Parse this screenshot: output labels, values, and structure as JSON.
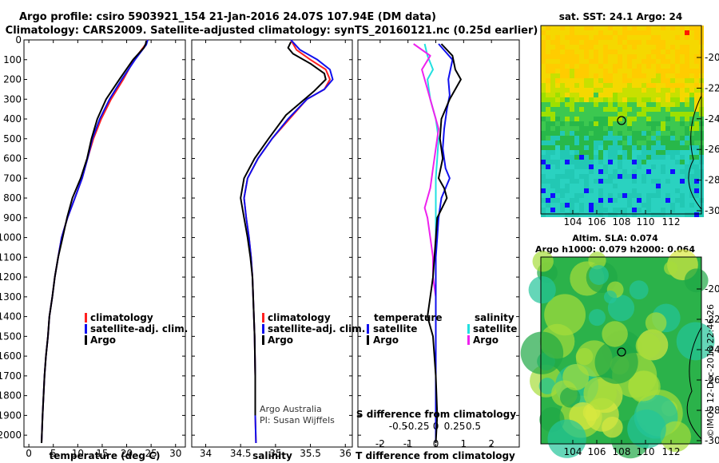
{
  "header": {
    "title_line1": "Argo profile: csiro 5903921_154 21-Jan-2016 24.07S 107.94E (DM data)",
    "title_line2": "Climatology: CARS2009. Satellite-adjusted climatology: synTS_20160121.nc (0.25d earlier)"
  },
  "colors": {
    "climatology": "#ff2020",
    "satellite": "#1010ee",
    "argo": "#000000",
    "sat_salinity": "#22e0e0",
    "argo_salinity": "#ee22ee"
  },
  "footer": {
    "credit1": "Argo Australia",
    "credit2": "PI: Susan Wijffels",
    "stamp": "©IMOS 12-Dec-2018 22:46:26"
  },
  "sst_map": {
    "title": "sat. SST: 24.1  Argo: 24",
    "lat_ticks": [
      "-20",
      "-22",
      "-24",
      "-26",
      "-28",
      "-30"
    ],
    "lon_ticks": [
      "104",
      "106",
      "108",
      "110",
      "112"
    ]
  },
  "sla_map": {
    "title1": "Altim. SLA: 0.074",
    "title2": "Argo h1000: 0.079  h2000: 0.064",
    "lat_ticks": [
      "-20",
      "-22",
      "-24",
      "-26",
      "-28",
      "-30"
    ],
    "lon_ticks": [
      "104",
      "106",
      "108",
      "110",
      "112"
    ]
  },
  "chart_data": [
    {
      "type": "line",
      "panel": "temperature",
      "xlabel": "temperature (deg C)",
      "ylabel": "",
      "xlim": [
        -1,
        32
      ],
      "ylim": [
        2060,
        0
      ],
      "y_inverted": true,
      "x_ticks": [
        "0",
        "5",
        "10",
        "15",
        "20",
        "25",
        "30"
      ],
      "y_ticks": [
        "0",
        "100",
        "200",
        "300",
        "400",
        "500",
        "600",
        "700",
        "800",
        "900",
        "1000",
        "1100",
        "1200",
        "1300",
        "1400",
        "1500",
        "1600",
        "1700",
        "1800",
        "1900",
        "2000"
      ],
      "legend": [
        "climatology",
        "satellite-adj. clim.",
        "Argo"
      ],
      "series": [
        {
          "name": "climatology",
          "color": "#ff2020",
          "x": [
            24.3,
            23.8,
            21.5,
            19.3,
            16.8,
            14.8,
            13.2,
            12.0,
            10.9,
            9.4,
            7.9,
            6.7,
            6.0,
            5.3,
            4.8,
            4.2,
            3.9,
            3.5,
            3.2,
            3.0,
            2.8,
            2.6
          ],
          "y": [
            0,
            25,
            100,
            200,
            300,
            400,
            500,
            600,
            700,
            800,
            900,
            1000,
            1100,
            1200,
            1300,
            1400,
            1500,
            1600,
            1700,
            1800,
            1900,
            2040
          ]
        },
        {
          "name": "satellite-adj. clim.",
          "color": "#1010ee",
          "x": [
            24.3,
            24.0,
            21.7,
            19.0,
            16.5,
            14.5,
            13.0,
            12.0,
            10.9,
            9.4,
            7.9,
            6.7,
            6.0,
            5.3,
            4.8,
            4.2,
            3.9,
            3.5,
            3.2,
            3.0,
            2.8,
            2.6
          ],
          "y": [
            0,
            25,
            100,
            200,
            300,
            400,
            500,
            600,
            700,
            800,
            900,
            1000,
            1100,
            1200,
            1300,
            1400,
            1500,
            1600,
            1700,
            1800,
            1900,
            2040
          ]
        },
        {
          "name": "Argo",
          "color": "#000000",
          "x": [
            24.0,
            23.9,
            23.5,
            21.3,
            18.5,
            15.8,
            14.0,
            12.8,
            11.9,
            10.6,
            8.9,
            7.8,
            6.9,
            6.0,
            5.3,
            4.8,
            4.2,
            3.9,
            3.5,
            3.2,
            3.0,
            2.8,
            2.6
          ],
          "y": [
            5,
            20,
            40,
            100,
            200,
            300,
            400,
            500,
            600,
            700,
            800,
            900,
            1000,
            1100,
            1200,
            1300,
            1400,
            1500,
            1600,
            1700,
            1800,
            1900,
            2040
          ]
        }
      ]
    },
    {
      "type": "line",
      "panel": "salinity",
      "xlabel": "salinity",
      "ylabel": "",
      "xlim": [
        33.8,
        36.1
      ],
      "ylim": [
        2060,
        0
      ],
      "y_inverted": true,
      "x_ticks": [
        "34",
        "34.5",
        "35",
        "35.5",
        "36"
      ],
      "legend": [
        "climatology",
        "satellite-adj. clim.",
        "Argo"
      ],
      "series": [
        {
          "name": "climatology",
          "color": "#ff2020",
          "x": [
            35.22,
            35.3,
            35.5,
            35.72,
            35.78,
            35.7,
            35.45,
            35.2,
            34.95,
            34.75,
            34.6,
            34.55,
            34.58,
            34.62,
            34.65,
            34.67,
            34.68,
            34.69,
            34.7,
            34.71,
            34.71,
            34.72
          ],
          "y": [
            0,
            50,
            100,
            150,
            200,
            250,
            300,
            400,
            500,
            600,
            700,
            800,
            900,
            1000,
            1100,
            1200,
            1300,
            1400,
            1500,
            1700,
            1900,
            2040
          ]
        },
        {
          "name": "satellite-adj. clim.",
          "color": "#1010ee",
          "x": [
            35.22,
            35.35,
            35.6,
            35.78,
            35.82,
            35.7,
            35.45,
            35.18,
            34.95,
            34.75,
            34.6,
            34.55,
            34.58,
            34.62,
            34.65,
            34.67,
            34.68,
            34.69,
            34.7,
            34.71,
            34.71,
            34.72
          ],
          "y": [
            0,
            50,
            100,
            150,
            200,
            250,
            300,
            400,
            500,
            600,
            700,
            800,
            900,
            1000,
            1100,
            1200,
            1300,
            1400,
            1500,
            1700,
            1900,
            2040
          ]
        },
        {
          "name": "Argo",
          "color": "#000000",
          "x": [
            35.22,
            35.18,
            35.25,
            35.5,
            35.7,
            35.72,
            35.55,
            35.15,
            34.9,
            34.7,
            34.55,
            34.5,
            34.55,
            34.6,
            34.64,
            34.67,
            34.68,
            34.69,
            34.7,
            34.71,
            34.71
          ],
          "y": [
            10,
            40,
            70,
            120,
            170,
            200,
            260,
            380,
            500,
            600,
            700,
            800,
            900,
            1000,
            1100,
            1200,
            1300,
            1400,
            1500,
            1700,
            1900
          ]
        }
      ]
    },
    {
      "type": "line",
      "panel": "difference",
      "xlabel": "T difference from climatology",
      "title": "S difference from climatology",
      "xlim": [
        -2.8,
        3.0
      ],
      "ylim": [
        2060,
        0
      ],
      "y_inverted": true,
      "x_ticks": [
        "-2",
        "-1",
        "0",
        "1",
        "2"
      ],
      "x2_ticks": [
        "-0.5",
        "-0.25",
        "0",
        "0.25",
        "0.5"
      ],
      "legend": {
        "temperature_title": "temperature",
        "salinity_title": "salinity",
        "temperature": [
          "satellite",
          "Argo"
        ],
        "salinity": [
          "satellite",
          "Argo"
        ]
      },
      "series": [
        {
          "name": "satellite",
          "color": "#1010ee",
          "x": [
            0.1,
            0.35,
            0.6,
            0.45,
            0.5,
            0.4,
            0.3,
            0.25,
            0.35,
            0.5,
            0.2,
            0.1,
            0.05,
            0.0,
            0.0,
            0.0,
            0.0,
            0.0,
            0.0,
            0.0,
            0.0
          ],
          "y": [
            20,
            60,
            100,
            200,
            280,
            350,
            450,
            550,
            650,
            700,
            800,
            900,
            1000,
            1100,
            1200,
            1300,
            1400,
            1500,
            1700,
            1900,
            2040
          ]
        },
        {
          "name": "Argo",
          "color": "#000000",
          "x": [
            0.2,
            0.6,
            0.7,
            0.9,
            0.5,
            0.2,
            0.15,
            0.25,
            0.1,
            0.3,
            0.4,
            0.05,
            0.0,
            -0.05,
            -0.1,
            -0.2,
            -0.3,
            -0.1,
            0.0,
            0.05,
            0.0
          ],
          "y": [
            20,
            80,
            150,
            200,
            300,
            400,
            500,
            600,
            700,
            750,
            800,
            900,
            1000,
            1100,
            1200,
            1300,
            1400,
            1500,
            1700,
            1900,
            2040
          ]
        },
        {
          "name": "satellite",
          "color": "#22e0e0",
          "x": [
            -0.4,
            -0.3,
            -0.1,
            -0.3,
            -0.2,
            0.0,
            0.1,
            0.05,
            0.0,
            0.0,
            0.0,
            0.0,
            0.0,
            0.0,
            0.0,
            0.0,
            0.0,
            0.0,
            0.0,
            0.0
          ],
          "y": [
            20,
            80,
            150,
            200,
            300,
            400,
            500,
            600,
            700,
            800,
            900,
            1000,
            1100,
            1200,
            1300,
            1400,
            1500,
            1600,
            1800,
            2040
          ]
        },
        {
          "name": "Argo",
          "color": "#ee22ee",
          "x": [
            -0.8,
            -0.2,
            -0.5,
            -0.3,
            -0.1,
            0.1,
            0.0,
            -0.1,
            -0.2,
            -0.4,
            -0.3,
            -0.2,
            -0.1,
            -0.1,
            0.0,
            0.0,
            0.0,
            0.0,
            0.0
          ],
          "y": [
            20,
            80,
            150,
            250,
            350,
            450,
            550,
            650,
            750,
            850,
            900,
            1000,
            1100,
            1200,
            1300,
            1400,
            1500,
            1700,
            1900
          ]
        }
      ]
    }
  ]
}
